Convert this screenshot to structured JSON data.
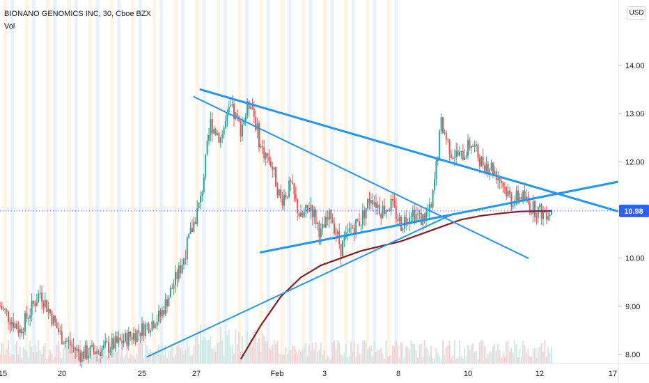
{
  "header": {
    "symbol": "BIONANO GENOMICS INC, 30, Cboe BZX",
    "volume_label": "Vol",
    "currency": "USD"
  },
  "price_tag": {
    "value": "10.98",
    "color": "#2962ff"
  },
  "colors": {
    "up": "#26a69a",
    "down": "#ef5350",
    "trendline": "#2196f3",
    "moving_average": "#8b1a1a",
    "premarket_band": "#fff1dc",
    "afterhours_band": "#e3f0fc"
  },
  "chart_data": {
    "type": "candlestick",
    "title": "BIONANO GENOMICS INC, 30, Cboe BZX",
    "ylabel": "USD",
    "ylim": [
      7.95,
      14.8
    ],
    "y_ticks": [
      "8.00",
      "9.00",
      "10.00",
      "11.00",
      "12.00",
      "13.00",
      "14.00"
    ],
    "x_ticks": [
      "15",
      "20",
      "25",
      "27",
      "Feb",
      "3",
      "8",
      "10",
      "12",
      "17"
    ],
    "last_price": 10.98,
    "price_path": [
      [
        0,
        9.0
      ],
      [
        6,
        8.5
      ],
      [
        12,
        9.3
      ],
      [
        18,
        8.4
      ],
      [
        24,
        8.0
      ],
      [
        30,
        8.1
      ],
      [
        36,
        8.25
      ],
      [
        42,
        8.5
      ],
      [
        48,
        8.8
      ],
      [
        54,
        9.8
      ],
      [
        60,
        11.2
      ],
      [
        63,
        12.8
      ],
      [
        66,
        12.5
      ],
      [
        69,
        13.1
      ],
      [
        72,
        12.7
      ],
      [
        75,
        13.3
      ],
      [
        78,
        12.3
      ],
      [
        81,
        12.0
      ],
      [
        84,
        11.2
      ],
      [
        87,
        11.5
      ],
      [
        90,
        10.8
      ],
      [
        93,
        11.1
      ],
      [
        96,
        10.5
      ],
      [
        99,
        10.9
      ],
      [
        102,
        10.2
      ],
      [
        105,
        10.6
      ],
      [
        108,
        10.8
      ],
      [
        111,
        11.3
      ],
      [
        114,
        11.0
      ],
      [
        117,
        11.1
      ],
      [
        120,
        10.7
      ],
      [
        123,
        11.0
      ],
      [
        126,
        10.8
      ],
      [
        129,
        11.0
      ],
      [
        132,
        12.8
      ],
      [
        135,
        12.2
      ],
      [
        138,
        12.1
      ],
      [
        141,
        12.4
      ],
      [
        144,
        12.0
      ],
      [
        147,
        11.9
      ],
      [
        150,
        11.6
      ],
      [
        153,
        11.2
      ],
      [
        156,
        11.3
      ],
      [
        159,
        11.05
      ],
      [
        162,
        10.95
      ],
      [
        165,
        10.98
      ]
    ],
    "moving_average": [
      [
        72,
        7.9
      ],
      [
        78,
        8.6
      ],
      [
        84,
        9.2
      ],
      [
        90,
        9.6
      ],
      [
        96,
        9.85
      ],
      [
        102,
        10.0
      ],
      [
        108,
        10.15
      ],
      [
        114,
        10.25
      ],
      [
        120,
        10.35
      ],
      [
        126,
        10.5
      ],
      [
        132,
        10.65
      ],
      [
        138,
        10.8
      ],
      [
        144,
        10.88
      ],
      [
        150,
        10.93
      ],
      [
        156,
        10.97
      ],
      [
        165,
        10.98
      ]
    ],
    "trendlines": [
      {
        "name": "upper-resistance",
        "points": [
          [
            60,
            13.5
          ],
          [
            186,
            10.95
          ]
        ]
      },
      {
        "name": "lower-support",
        "points": [
          [
            78,
            10.12
          ],
          [
            186,
            11.6
          ]
        ]
      },
      {
        "name": "early-descending",
        "points": [
          [
            58,
            13.35
          ],
          [
            158,
            10.0
          ]
        ]
      },
      {
        "name": "rising-support",
        "points": [
          [
            44,
            7.95
          ],
          [
            135,
            10.9
          ]
        ]
      }
    ],
    "grid": false,
    "legend": "top-left"
  }
}
